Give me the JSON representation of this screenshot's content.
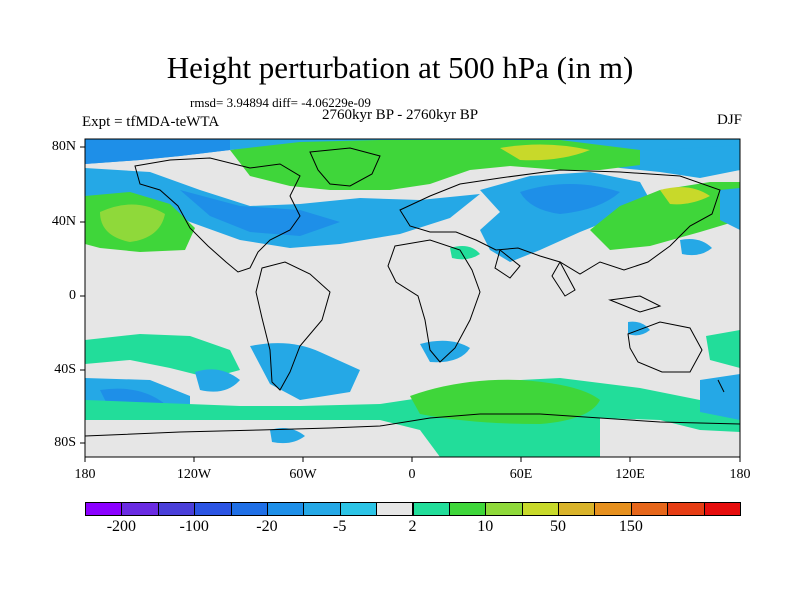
{
  "title": "Height perturbation at 500 hPa (in m)",
  "stats": "rmsd= 3.94894 diff= -4.06229e-09",
  "period": "2760kyr BP - 2760kyr BP",
  "experiment": "Expt = tfMDA-teWTA",
  "season": "DJF",
  "map": {
    "lat_ticks": [
      "80N",
      "40N",
      "0",
      "40S",
      "80S"
    ],
    "lon_ticks": [
      "180",
      "120W",
      "60W",
      "0",
      "60E",
      "120E",
      "180"
    ],
    "background_color": "#e6e6e6",
    "coastline_color": "#000000"
  },
  "colorbar": {
    "colors": [
      "#8b00ff",
      "#6a2be2",
      "#4a3fd9",
      "#2b54e3",
      "#1f6fe6",
      "#1e8fe8",
      "#25a8e6",
      "#2cc4e6",
      "#e6e6e6",
      "#22dd9a",
      "#3fd63a",
      "#8fd93a",
      "#c8d92a",
      "#d9b32a",
      "#e6901e",
      "#e6661a",
      "#e63d14",
      "#e60d0d"
    ],
    "labels": [
      "-200",
      "-100",
      "-20",
      "-5",
      "2",
      "10",
      "50",
      "150"
    ]
  }
}
